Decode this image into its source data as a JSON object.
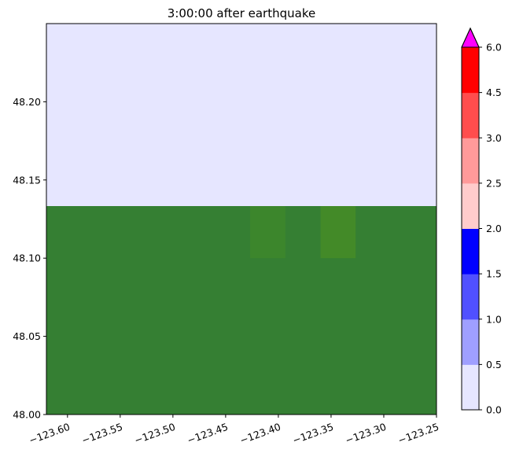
{
  "chart_data": {
    "type": "heatmap",
    "title": "3:00:00 after earthquake",
    "xlabel": "",
    "ylabel": "",
    "xlim": [
      -123.62,
      -123.25
    ],
    "ylim": [
      48.0,
      48.25
    ],
    "x_ticks": [
      -123.6,
      -123.55,
      -123.5,
      -123.45,
      -123.4,
      -123.35,
      -123.3,
      -123.25
    ],
    "x_tick_labels": [
      "−123.60",
      "−123.55",
      "−123.50",
      "−123.45",
      "−123.40",
      "−123.35",
      "−123.30",
      "−123.25"
    ],
    "y_ticks": [
      48.0,
      48.05,
      48.1,
      48.15,
      48.2
    ],
    "y_tick_labels": [
      "48.00",
      "48.05",
      "48.10",
      "48.15",
      "48.20"
    ],
    "regions": [
      {
        "x0": -123.62,
        "x1": -123.25,
        "y0": 48.1333,
        "y1": 48.25,
        "color": "#e6e6ff",
        "value": 0.0
      },
      {
        "x0": -123.62,
        "x1": -123.25,
        "y0": 48.0,
        "y1": 48.1333,
        "color": "#357f33"
      },
      {
        "x0": -123.4267,
        "x1": -123.3933,
        "y0": 48.1,
        "y1": 48.1333,
        "color": "#3c862c"
      },
      {
        "x0": -123.36,
        "x1": -123.3267,
        "y0": 48.1,
        "y1": 48.1333,
        "color": "#438a28"
      }
    ],
    "colorbar": {
      "levels": [
        0.0,
        0.5,
        1.0,
        1.5,
        2.0,
        2.5,
        3.0,
        4.5,
        6.0
      ],
      "tick_labels": [
        "0.0",
        "0.5",
        "1.0",
        "1.5",
        "2.0",
        "2.5",
        "3.0",
        "4.5",
        "6.0"
      ],
      "colors": [
        "#e6e6ff",
        "#9f9fff",
        "#5050ff",
        "#0000ff",
        "#ffcccc",
        "#ff9a9a",
        "#ff4d4d",
        "#ff0000"
      ],
      "extend_max_color": "#ff00ff"
    },
    "grid": false
  }
}
